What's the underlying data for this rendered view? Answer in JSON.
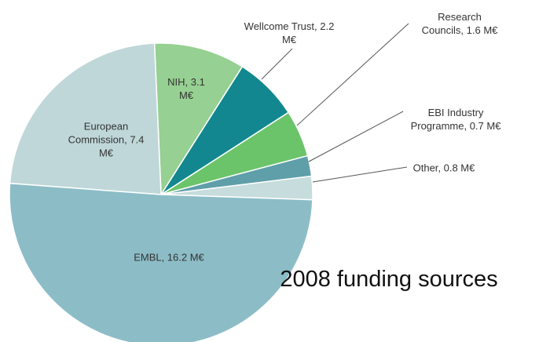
{
  "chart_data": {
    "type": "pie",
    "title": "2008 funding sources",
    "values": [
      0.8,
      0.7,
      1.6,
      2.2,
      3.1,
      7.4,
      16.2
    ],
    "value_labels": [
      "Other, 0.8 M€",
      "EBI Industry Programme, 0.7 M€",
      "Research Councils, 1.6 M€",
      "Wellcome Trust, 2.2 M€",
      "NIH, 3.1 M€",
      "European Commission, 7.4 M€",
      "EMBL, 16.2 M€"
    ],
    "colors": [
      "#c6dcdd",
      "#5f9fa9",
      "#6cc46a",
      "#13878f",
      "#96d092",
      "#bfd7d9",
      "#8cbdc7"
    ]
  }
}
